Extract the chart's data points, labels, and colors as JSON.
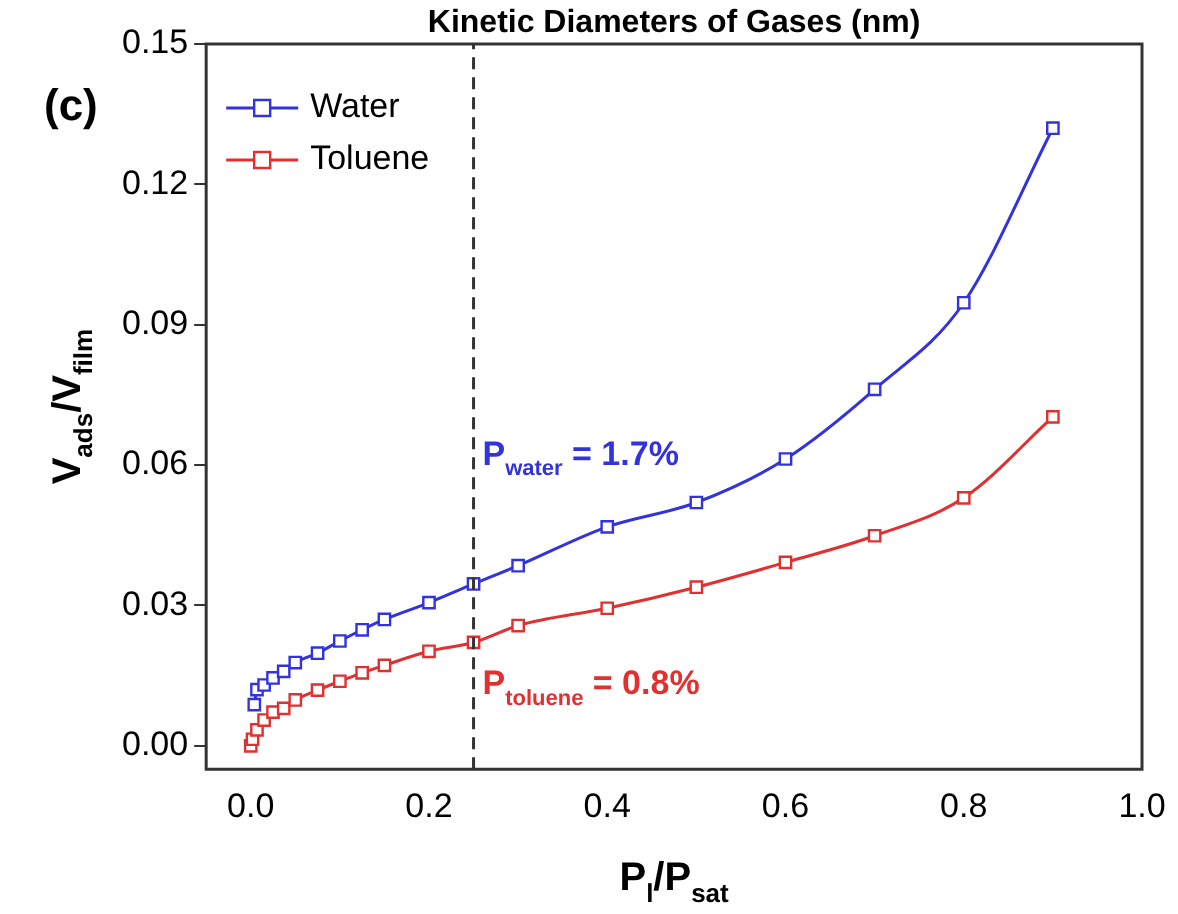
{
  "chart_data": {
    "type": "line",
    "title": "Kinetic Diameters of Gases (nm)",
    "xlabel": "P$_{l}$/P$_{sat}$",
    "ylabel": "V$_{ads}$/V$_{film}$",
    "annotations": [
      "(c)",
      {
        "text": "P$_{water}$ = 1.7%",
        "x": 0.26,
        "y": 0.06
      },
      {
        "text": "P$_{toluene}$ = 0.8%",
        "x": 0.26,
        "y": 0.011
      }
    ],
    "series": [
      {
        "name": "Water",
        "color": "#3333dd",
        "x": [
          0.004,
          0.007,
          0.015,
          0.025,
          0.037,
          0.05,
          0.075,
          0.1,
          0.125,
          0.15,
          0.2,
          0.25,
          0.3,
          0.4,
          0.5,
          0.6,
          0.7,
          0.8,
          0.9
        ],
        "values": [
          0.0088,
          0.012,
          0.013,
          0.0145,
          0.0159,
          0.0178,
          0.0198,
          0.0224,
          0.0248,
          0.027,
          0.0306,
          0.0346,
          0.0385,
          0.0468,
          0.052,
          0.0613,
          0.0762,
          0.0947,
          0.132
        ]
      },
      {
        "name": "Toluene",
        "color": "#e03030",
        "x": [
          0,
          0.002,
          0.007,
          0.015,
          0.025,
          0.037,
          0.05,
          0.075,
          0.1,
          0.125,
          0.15,
          0.2,
          0.25,
          0.3,
          0.4,
          0.5,
          0.6,
          0.7,
          0.8,
          0.9
        ],
        "values": [
          0,
          0.0014,
          0.0034,
          0.0055,
          0.0072,
          0.008,
          0.0098,
          0.0119,
          0.0138,
          0.0156,
          0.0172,
          0.0202,
          0.0221,
          0.0257,
          0.0294,
          0.0339,
          0.0392,
          0.0449,
          0.053,
          0.0703
        ]
      }
    ],
    "xlim": [
      -0.05,
      1.0
    ],
    "xticks": [
      {
        "value": 0,
        "label": "0.0"
      },
      {
        "value": 0.2,
        "label": "0.2"
      },
      {
        "value": 0.4,
        "label": "0.4"
      },
      {
        "value": 0.6,
        "label": "0.6"
      },
      {
        "value": 0.8,
        "label": "0.8"
      },
      {
        "value": 1.0,
        "label": "1.0"
      }
    ],
    "ylim": [
      -0.005,
      0.15
    ],
    "yticks": [
      {
        "value": 0,
        "label": "0.00"
      },
      {
        "value": 0.03,
        "label": "0.03"
      },
      {
        "value": 0.06,
        "label": "0.06"
      },
      {
        "value": 0.09,
        "label": "0.09"
      },
      {
        "value": 0.12,
        "label": "0.12"
      },
      {
        "value": 0.15,
        "label": "0.15"
      }
    ],
    "ref_lines": [
      {
        "axis": "x",
        "value": 0.25,
        "color": "#333333",
        "line_style": "dashed"
      }
    ],
    "marker": "square",
    "line_style": "solid",
    "legend": "top left",
    "grid": false
  }
}
